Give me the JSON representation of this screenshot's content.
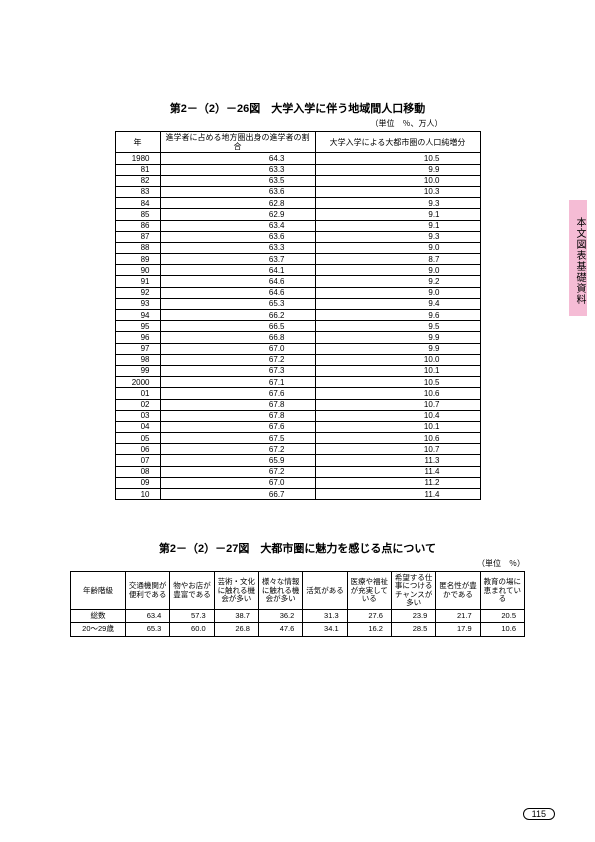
{
  "side_tab": "本文図表基礎資料",
  "page_number": "115",
  "table1": {
    "title": "第2－（2）－26図　大学入学に伴う地域間人口移動",
    "unit": "（単位　％、万人）",
    "head": [
      "年",
      "進学者に占める地方圏出身の進学者の割合",
      "大学入学による大都市圏の人口純増分"
    ],
    "rows": [
      [
        "1980",
        "64.3",
        "10.5"
      ],
      [
        "81",
        "63.3",
        "9.9"
      ],
      [
        "82",
        "63.5",
        "10.0"
      ],
      [
        "83",
        "63.6",
        "10.3"
      ],
      [
        "84",
        "62.8",
        "9.3"
      ],
      [
        "85",
        "62.9",
        "9.1"
      ],
      [
        "86",
        "63.4",
        "9.1"
      ],
      [
        "87",
        "63.6",
        "9.3"
      ],
      [
        "88",
        "63.3",
        "9.0"
      ],
      [
        "89",
        "63.7",
        "8.7"
      ],
      [
        "90",
        "64.1",
        "9.0"
      ],
      [
        "91",
        "64.6",
        "9.2"
      ],
      [
        "92",
        "64.6",
        "9.0"
      ],
      [
        "93",
        "65.3",
        "9.4"
      ],
      [
        "94",
        "66.2",
        "9.6"
      ],
      [
        "95",
        "66.5",
        "9.5"
      ],
      [
        "96",
        "66.8",
        "9.9"
      ],
      [
        "97",
        "67.0",
        "9.9"
      ],
      [
        "98",
        "67.2",
        "10.0"
      ],
      [
        "99",
        "67.3",
        "10.1"
      ],
      [
        "2000",
        "67.1",
        "10.5"
      ],
      [
        "01",
        "67.6",
        "10.6"
      ],
      [
        "02",
        "67.8",
        "10.7"
      ],
      [
        "03",
        "67.8",
        "10.4"
      ],
      [
        "04",
        "67.6",
        "10.1"
      ],
      [
        "05",
        "67.5",
        "10.6"
      ],
      [
        "06",
        "67.2",
        "10.7"
      ],
      [
        "07",
        "65.9",
        "11.3"
      ],
      [
        "08",
        "67.2",
        "11.4"
      ],
      [
        "09",
        "67.0",
        "11.2"
      ],
      [
        "10",
        "66.7",
        "11.4"
      ]
    ]
  },
  "table2": {
    "title": "第2－（2）－27図　大都市圏に魅力を感じる点について",
    "unit": "（単位　％）",
    "head": [
      "年齢階級",
      "交通機関が便利である",
      "物やお店が豊富である",
      "芸術・文化に触れる機会が多い",
      "様々な情報に触れる機会が多い",
      "活気がある",
      "医療や福祉が充実している",
      "希望する仕事につけるチャンスが多い",
      "匿名性が豊かである",
      "教育の場に恵まれている"
    ],
    "rows": [
      [
        "総数",
        "63.4",
        "57.3",
        "38.7",
        "36.2",
        "31.3",
        "27.6",
        "23.9",
        "21.7",
        "20.5"
      ],
      [
        "20～29歳",
        "65.3",
        "60.0",
        "26.8",
        "47.6",
        "34.1",
        "16.2",
        "28.5",
        "17.9",
        "10.6"
      ]
    ]
  }
}
